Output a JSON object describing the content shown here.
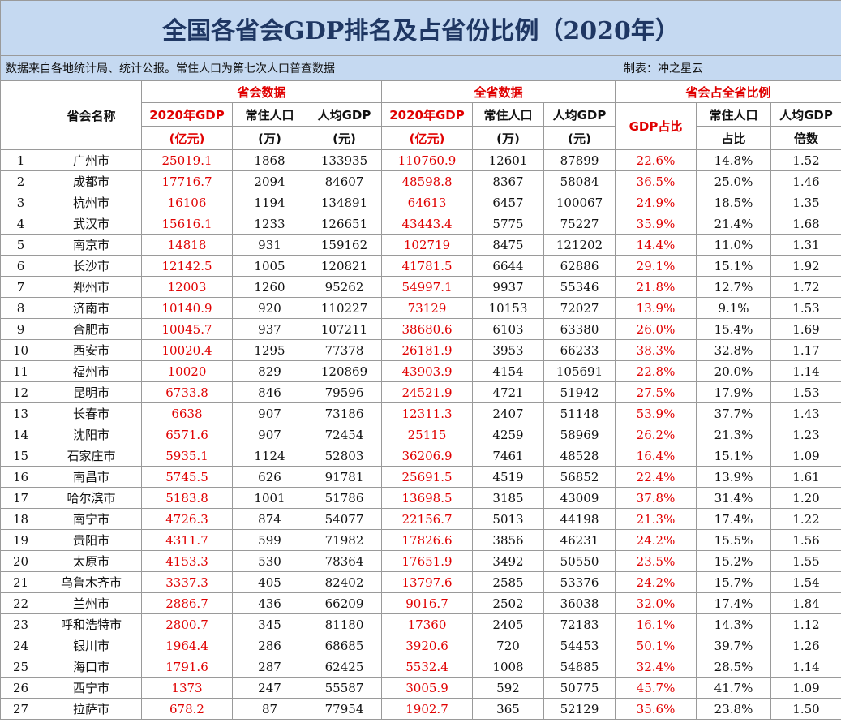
{
  "title": "全国各省会GDP排名及占省份比例（2020年）",
  "source_note": "数据来自各地统计局、统计公报。常住人口为第七次人口普查数据",
  "author": "制表：冲之星云",
  "groups": {
    "capital": "省会数据",
    "province": "全省数据",
    "ratio": "省会占全省比例"
  },
  "headers": {
    "name": "省会名称",
    "cap_gdp_1": "2020年GDP",
    "cap_gdp_2": "(亿元)",
    "cap_pop_1": "常住人口",
    "cap_pop_2": "(万)",
    "cap_pc_1": "人均GDP",
    "cap_pc_2": "(元)",
    "prov_gdp_1": "2020年GDP",
    "prov_gdp_2": "(亿元)",
    "prov_pop_1": "常住人口",
    "prov_pop_2": "(万)",
    "prov_pc_1": "人均GDP",
    "prov_pc_2": "(元)",
    "gdp_ratio": "GDP占比",
    "pop_ratio_1": "常住人口",
    "pop_ratio_2": "占比",
    "pc_ratio_1": "人均GDP",
    "pc_ratio_2": "倍数"
  },
  "rows": [
    [
      "1",
      "广州市",
      "25019.1",
      "1868",
      "133935",
      "110760.9",
      "12601",
      "87899",
      "22.6%",
      "14.8%",
      "1.52"
    ],
    [
      "2",
      "成都市",
      "17716.7",
      "2094",
      "84607",
      "48598.8",
      "8367",
      "58084",
      "36.5%",
      "25.0%",
      "1.46"
    ],
    [
      "3",
      "杭州市",
      "16106",
      "1194",
      "134891",
      "64613",
      "6457",
      "100067",
      "24.9%",
      "18.5%",
      "1.35"
    ],
    [
      "4",
      "武汉市",
      "15616.1",
      "1233",
      "126651",
      "43443.4",
      "5775",
      "75227",
      "35.9%",
      "21.4%",
      "1.68"
    ],
    [
      "5",
      "南京市",
      "14818",
      "931",
      "159162",
      "102719",
      "8475",
      "121202",
      "14.4%",
      "11.0%",
      "1.31"
    ],
    [
      "6",
      "长沙市",
      "12142.5",
      "1005",
      "120821",
      "41781.5",
      "6644",
      "62886",
      "29.1%",
      "15.1%",
      "1.92"
    ],
    [
      "7",
      "郑州市",
      "12003",
      "1260",
      "95262",
      "54997.1",
      "9937",
      "55346",
      "21.8%",
      "12.7%",
      "1.72"
    ],
    [
      "8",
      "济南市",
      "10140.9",
      "920",
      "110227",
      "73129",
      "10153",
      "72027",
      "13.9%",
      "9.1%",
      "1.53"
    ],
    [
      "9",
      "合肥市",
      "10045.7",
      "937",
      "107211",
      "38680.6",
      "6103",
      "63380",
      "26.0%",
      "15.4%",
      "1.69"
    ],
    [
      "10",
      "西安市",
      "10020.4",
      "1295",
      "77378",
      "26181.9",
      "3953",
      "66233",
      "38.3%",
      "32.8%",
      "1.17"
    ],
    [
      "11",
      "福州市",
      "10020",
      "829",
      "120869",
      "43903.9",
      "4154",
      "105691",
      "22.8%",
      "20.0%",
      "1.14"
    ],
    [
      "12",
      "昆明市",
      "6733.8",
      "846",
      "79596",
      "24521.9",
      "4721",
      "51942",
      "27.5%",
      "17.9%",
      "1.53"
    ],
    [
      "13",
      "长春市",
      "6638",
      "907",
      "73186",
      "12311.3",
      "2407",
      "51148",
      "53.9%",
      "37.7%",
      "1.43"
    ],
    [
      "14",
      "沈阳市",
      "6571.6",
      "907",
      "72454",
      "25115",
      "4259",
      "58969",
      "26.2%",
      "21.3%",
      "1.23"
    ],
    [
      "15",
      "石家庄市",
      "5935.1",
      "1124",
      "52803",
      "36206.9",
      "7461",
      "48528",
      "16.4%",
      "15.1%",
      "1.09"
    ],
    [
      "16",
      "南昌市",
      "5745.5",
      "626",
      "91781",
      "25691.5",
      "4519",
      "56852",
      "22.4%",
      "13.9%",
      "1.61"
    ],
    [
      "17",
      "哈尔滨市",
      "5183.8",
      "1001",
      "51786",
      "13698.5",
      "3185",
      "43009",
      "37.8%",
      "31.4%",
      "1.20"
    ],
    [
      "18",
      "南宁市",
      "4726.3",
      "874",
      "54077",
      "22156.7",
      "5013",
      "44198",
      "21.3%",
      "17.4%",
      "1.22"
    ],
    [
      "19",
      "贵阳市",
      "4311.7",
      "599",
      "71982",
      "17826.6",
      "3856",
      "46231",
      "24.2%",
      "15.5%",
      "1.56"
    ],
    [
      "20",
      "太原市",
      "4153.3",
      "530",
      "78364",
      "17651.9",
      "3492",
      "50550",
      "23.5%",
      "15.2%",
      "1.55"
    ],
    [
      "21",
      "乌鲁木齐市",
      "3337.3",
      "405",
      "82402",
      "13797.6",
      "2585",
      "53376",
      "24.2%",
      "15.7%",
      "1.54"
    ],
    [
      "22",
      "兰州市",
      "2886.7",
      "436",
      "66209",
      "9016.7",
      "2502",
      "36038",
      "32.0%",
      "17.4%",
      "1.84"
    ],
    [
      "23",
      "呼和浩特市",
      "2800.7",
      "345",
      "81180",
      "17360",
      "2405",
      "72183",
      "16.1%",
      "14.3%",
      "1.12"
    ],
    [
      "24",
      "银川市",
      "1964.4",
      "286",
      "68685",
      "3920.6",
      "720",
      "54453",
      "50.1%",
      "39.7%",
      "1.26"
    ],
    [
      "25",
      "海口市",
      "1791.6",
      "287",
      "62425",
      "5532.4",
      "1008",
      "54885",
      "32.4%",
      "28.5%",
      "1.14"
    ],
    [
      "26",
      "西宁市",
      "1373",
      "247",
      "55587",
      "3005.9",
      "592",
      "50775",
      "45.7%",
      "41.7%",
      "1.09"
    ],
    [
      "27",
      "拉萨市",
      "678.2",
      "87",
      "77954",
      "1902.7",
      "365",
      "52129",
      "35.6%",
      "23.8%",
      "1.50"
    ]
  ],
  "colors": {
    "header_bg": "#c5d9f1",
    "title_text": "#1f3763",
    "accent_red": "#e00000"
  }
}
